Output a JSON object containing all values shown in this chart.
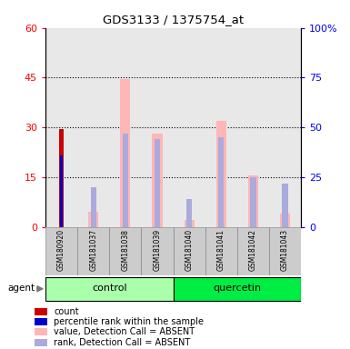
{
  "title": "GDS3133 / 1375754_at",
  "samples": [
    "GSM180920",
    "GSM181037",
    "GSM181038",
    "GSM181039",
    "GSM181040",
    "GSM181041",
    "GSM181042",
    "GSM181043"
  ],
  "count": [
    29.5,
    null,
    null,
    null,
    null,
    null,
    null,
    null
  ],
  "percentile_rank": [
    21.5,
    null,
    null,
    null,
    null,
    null,
    null,
    null
  ],
  "value_absent": [
    null,
    4.5,
    44.5,
    28.0,
    2.0,
    32.0,
    15.5,
    4.0
  ],
  "rank_absent_val": [
    null,
    12.0,
    28.0,
    26.5,
    8.5,
    27.0,
    15.0,
    13.0
  ],
  "ylim_left": [
    0,
    60
  ],
  "ylim_right": [
    0,
    100
  ],
  "yticks_left": [
    0,
    15,
    30,
    45,
    60
  ],
  "yticks_right": [
    0,
    25,
    50,
    75,
    100
  ],
  "ytick_labels_left": [
    "0",
    "15",
    "30",
    "45",
    "60"
  ],
  "ytick_labels_right": [
    "0",
    "25",
    "50",
    "75",
    "100%"
  ],
  "gridlines_at": [
    15,
    30,
    45
  ],
  "count_color": "#CC0000",
  "percentile_rank_color": "#0000CC",
  "value_absent_color": "#FFB6B6",
  "rank_absent_color": "#AAAADD",
  "control_color": "#AAFFAA",
  "quercetin_color": "#00EE44",
  "legend": [
    {
      "label": "count",
      "color": "#CC0000"
    },
    {
      "label": "percentile rank within the sample",
      "color": "#0000CC"
    },
    {
      "label": "value, Detection Call = ABSENT",
      "color": "#FFB6B6"
    },
    {
      "label": "rank, Detection Call = ABSENT",
      "color": "#AAAADD"
    }
  ]
}
